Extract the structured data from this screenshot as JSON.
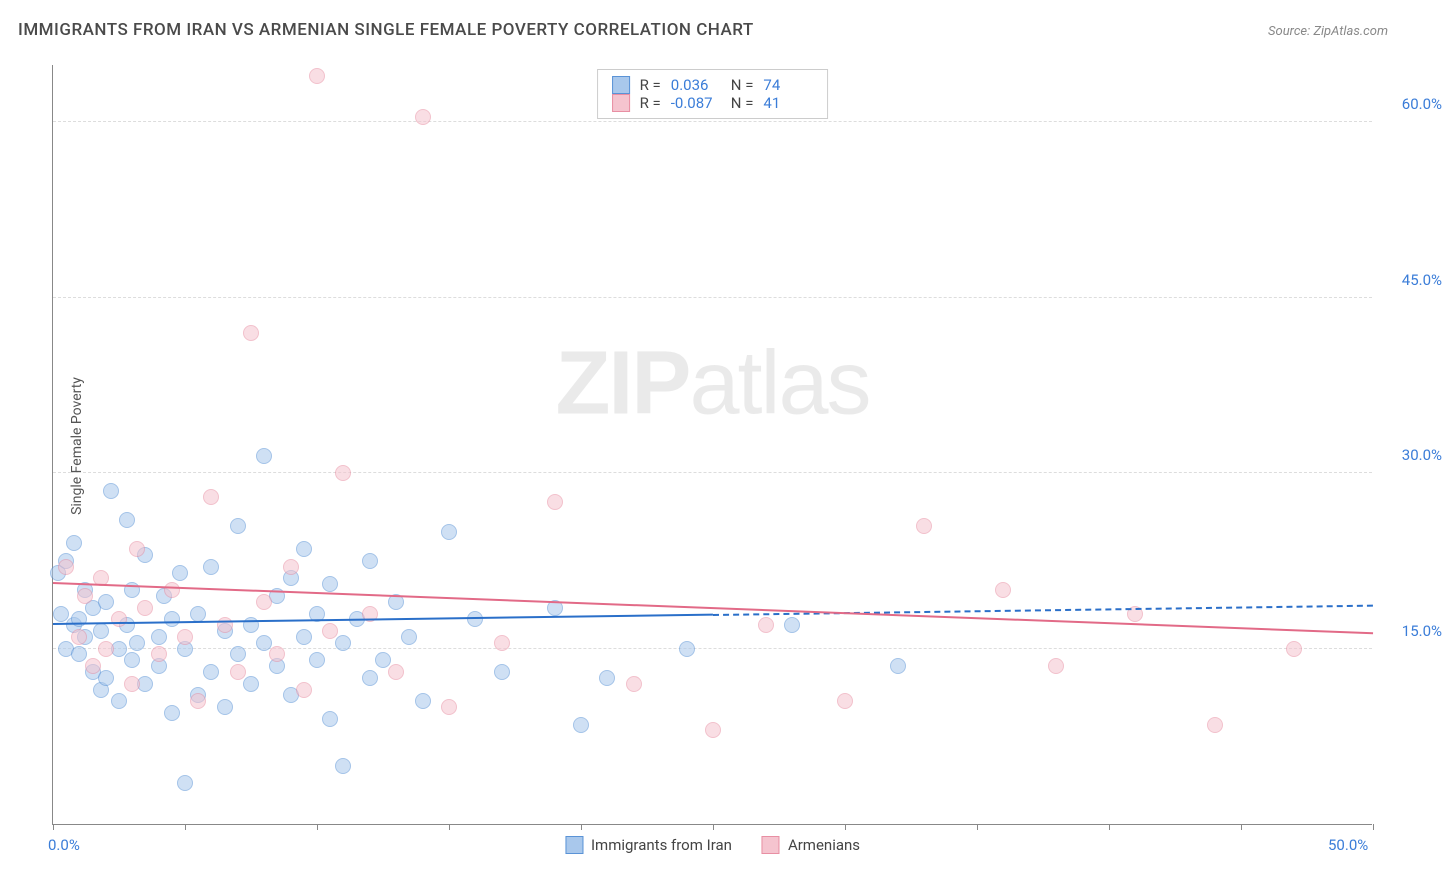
{
  "title": "IMMIGRANTS FROM IRAN VS ARMENIAN SINGLE FEMALE POVERTY CORRELATION CHART",
  "source_label": "Source:",
  "source_name": "ZipAtlas.com",
  "y_axis_label": "Single Female Poverty",
  "watermark_a": "ZIP",
  "watermark_b": "atlas",
  "chart": {
    "type": "scatter",
    "background_color": "#ffffff",
    "grid_color": "#dddddd",
    "axis_color": "#888888",
    "tick_label_color": "#3b7dd8",
    "xlim": [
      0,
      50
    ],
    "ylim": [
      0,
      65
    ],
    "x_ticks": [
      0,
      5,
      10,
      15,
      20,
      25,
      30,
      35,
      40,
      45,
      50
    ],
    "x_tick_labels": {
      "0": "0.0%",
      "50": "50.0%"
    },
    "y_gridlines": [
      15,
      30,
      45,
      60
    ],
    "y_tick_labels": {
      "15": "15.0%",
      "30": "30.0%",
      "45": "45.0%",
      "60": "60.0%"
    },
    "point_radius": 8,
    "point_opacity": 0.55,
    "series": [
      {
        "id": "iran",
        "label": "Immigrants from Iran",
        "fill_color": "#a9c8ec",
        "stroke_color": "#5a93d6",
        "trend_color": "#2a6fc9",
        "R": "0.036",
        "N": "74",
        "trend": {
          "x1": 0,
          "y1": 17.0,
          "x2": 25,
          "y2": 17.8,
          "dash_x2": 50,
          "dash_y2": 18.6
        },
        "points": [
          [
            0.2,
            21.5
          ],
          [
            0.3,
            18.0
          ],
          [
            0.5,
            22.5
          ],
          [
            0.5,
            15.0
          ],
          [
            0.8,
            17.0
          ],
          [
            0.8,
            24.0
          ],
          [
            1.0,
            17.5
          ],
          [
            1.0,
            14.5
          ],
          [
            1.2,
            20.0
          ],
          [
            1.2,
            16.0
          ],
          [
            1.5,
            13.0
          ],
          [
            1.5,
            18.5
          ],
          [
            1.8,
            16.5
          ],
          [
            1.8,
            11.5
          ],
          [
            2.0,
            12.5
          ],
          [
            2.0,
            19.0
          ],
          [
            2.2,
            28.5
          ],
          [
            2.5,
            15.0
          ],
          [
            2.5,
            10.5
          ],
          [
            2.8,
            17.0
          ],
          [
            2.8,
            26.0
          ],
          [
            3.0,
            14.0
          ],
          [
            3.0,
            20.0
          ],
          [
            3.2,
            15.5
          ],
          [
            3.5,
            12.0
          ],
          [
            3.5,
            23.0
          ],
          [
            4.0,
            16.0
          ],
          [
            4.0,
            13.5
          ],
          [
            4.2,
            19.5
          ],
          [
            4.5,
            9.5
          ],
          [
            4.5,
            17.5
          ],
          [
            4.8,
            21.5
          ],
          [
            5.0,
            3.5
          ],
          [
            5.0,
            15.0
          ],
          [
            5.5,
            11.0
          ],
          [
            5.5,
            18.0
          ],
          [
            6.0,
            13.0
          ],
          [
            6.0,
            22.0
          ],
          [
            6.5,
            16.5
          ],
          [
            6.5,
            10.0
          ],
          [
            7.0,
            14.5
          ],
          [
            7.0,
            25.5
          ],
          [
            7.5,
            17.0
          ],
          [
            7.5,
            12.0
          ],
          [
            8.0,
            31.5
          ],
          [
            8.0,
            15.5
          ],
          [
            8.5,
            19.5
          ],
          [
            8.5,
            13.5
          ],
          [
            9.0,
            21.0
          ],
          [
            9.0,
            11.0
          ],
          [
            9.5,
            16.0
          ],
          [
            9.5,
            23.5
          ],
          [
            10.0,
            14.0
          ],
          [
            10.0,
            18.0
          ],
          [
            10.5,
            9.0
          ],
          [
            10.5,
            20.5
          ],
          [
            11.0,
            5.0
          ],
          [
            11.0,
            15.5
          ],
          [
            11.5,
            17.5
          ],
          [
            12.0,
            12.5
          ],
          [
            12.0,
            22.5
          ],
          [
            12.5,
            14.0
          ],
          [
            13.0,
            19.0
          ],
          [
            13.5,
            16.0
          ],
          [
            14.0,
            10.5
          ],
          [
            15.0,
            25.0
          ],
          [
            16.0,
            17.5
          ],
          [
            17.0,
            13.0
          ],
          [
            19.0,
            18.5
          ],
          [
            20.0,
            8.5
          ],
          [
            21.0,
            12.5
          ],
          [
            24.0,
            15.0
          ],
          [
            28.0,
            17.0
          ],
          [
            32.0,
            13.5
          ]
        ]
      },
      {
        "id": "armenian",
        "label": "Armenians",
        "fill_color": "#f5c4cf",
        "stroke_color": "#e88fa3",
        "trend_color": "#e26a87",
        "R": "-0.087",
        "N": "41",
        "trend": {
          "x1": 0,
          "y1": 20.5,
          "x2": 50,
          "y2": 16.2
        },
        "points": [
          [
            0.5,
            22.0
          ],
          [
            1.0,
            16.0
          ],
          [
            1.2,
            19.5
          ],
          [
            1.5,
            13.5
          ],
          [
            1.8,
            21.0
          ],
          [
            2.0,
            15.0
          ],
          [
            2.5,
            17.5
          ],
          [
            3.0,
            12.0
          ],
          [
            3.2,
            23.5
          ],
          [
            3.5,
            18.5
          ],
          [
            4.0,
            14.5
          ],
          [
            4.5,
            20.0
          ],
          [
            5.0,
            16.0
          ],
          [
            5.5,
            10.5
          ],
          [
            6.0,
            28.0
          ],
          [
            6.5,
            17.0
          ],
          [
            7.0,
            13.0
          ],
          [
            7.5,
            42.0
          ],
          [
            8.0,
            19.0
          ],
          [
            8.5,
            14.5
          ],
          [
            9.0,
            22.0
          ],
          [
            9.5,
            11.5
          ],
          [
            10.0,
            64.0
          ],
          [
            10.5,
            16.5
          ],
          [
            11.0,
            30.0
          ],
          [
            12.0,
            18.0
          ],
          [
            13.0,
            13.0
          ],
          [
            14.0,
            60.5
          ],
          [
            15.0,
            10.0
          ],
          [
            17.0,
            15.5
          ],
          [
            19.0,
            27.5
          ],
          [
            22.0,
            12.0
          ],
          [
            25.0,
            8.0
          ],
          [
            27.0,
            17.0
          ],
          [
            30.0,
            10.5
          ],
          [
            33.0,
            25.5
          ],
          [
            36.0,
            20.0
          ],
          [
            38.0,
            13.5
          ],
          [
            41.0,
            18.0
          ],
          [
            44.0,
            8.5
          ],
          [
            47.0,
            15.0
          ]
        ]
      }
    ]
  },
  "legend_labels": {
    "R": "R  =",
    "N": "N  ="
  }
}
